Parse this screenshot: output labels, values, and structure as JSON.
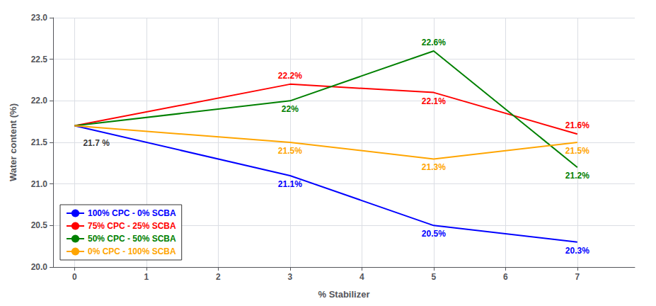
{
  "chart_data": {
    "type": "line",
    "x": [
      0,
      3,
      5,
      7
    ],
    "series": [
      {
        "name": "100% CPC - 0% SCBA",
        "color": "#0000FF",
        "values": [
          21.7,
          21.1,
          20.5,
          20.3
        ],
        "value_labels": [
          null,
          "21.1%",
          "20.5%",
          "20.3%"
        ]
      },
      {
        "name": "75% CPC - 25% SCBA",
        "color": "#FF0000",
        "values": [
          21.7,
          22.2,
          22.1,
          21.6
        ],
        "value_labels": [
          null,
          "22.2%",
          "22.1%",
          "21.6%"
        ]
      },
      {
        "name": "50% CPC - 50% SCBA",
        "color": "#008000",
        "values": [
          21.7,
          22.0,
          22.6,
          21.2
        ],
        "value_labels": [
          null,
          "22%",
          "22.6%",
          "21.2%"
        ]
      },
      {
        "name": "0% CPC - 100% SCBA",
        "color": "#FFA500",
        "values": [
          21.7,
          21.5,
          21.3,
          21.5
        ],
        "value_labels": [
          null,
          "21.5%",
          "21.3%",
          "21.5%"
        ]
      }
    ],
    "annotations": [
      {
        "text": "21.7 %",
        "x": 0,
        "y": 21.7,
        "color": "#000000"
      }
    ],
    "xlabel": "% Stabilizer",
    "ylabel": "Water content (%)",
    "xlim": [
      -0.3,
      7.8
    ],
    "ylim": [
      20.0,
      23.0
    ],
    "xticks": [
      0,
      1,
      2,
      3,
      4,
      5,
      6,
      7
    ],
    "yticks": [
      {
        "value": 20.0,
        "label": "20.0"
      },
      20.5,
      {
        "value": 21.0,
        "label": "21.0"
      },
      21.5,
      {
        "value": 22.0,
        "label": "22.0"
      },
      22.5,
      {
        "value": 23.0,
        "label": "23.0"
      }
    ],
    "grid": true,
    "legend": "lower left",
    "data_labels": true
  }
}
